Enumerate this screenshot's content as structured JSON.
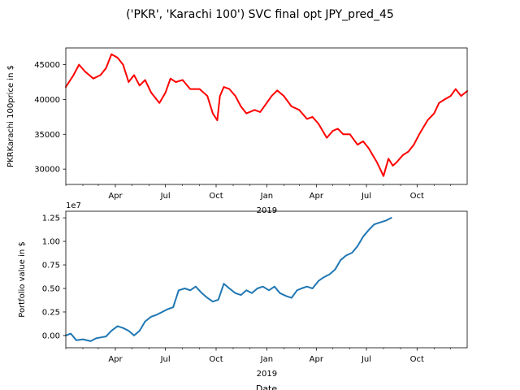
{
  "figure": {
    "title": "('PKR', 'Karachi 100') SVC final opt JPY_pred_45"
  },
  "chart_data": [
    {
      "type": "line",
      "ylabel": "PKRKarachi 100price in $",
      "xlabel": "",
      "x_tick_labels": [
        "Apr",
        "Jul",
        "Oct",
        "Jan",
        "Apr",
        "Jul",
        "Oct"
      ],
      "x_year_label": "2019",
      "y_ticks": [
        30000,
        35000,
        40000,
        45000
      ],
      "y_tick_labels": [
        "30000",
        "35000",
        "40000",
        "45000"
      ],
      "ylim": [
        27800,
        47400
      ],
      "xlim": [
        "2018-01-01",
        "2019-12-31"
      ],
      "grid": false,
      "series": [
        {
          "color": "#ff0000",
          "x": [
            "2018-01-01",
            "2018-01-15",
            "2018-01-25",
            "2018-02-05",
            "2018-02-20",
            "2018-03-05",
            "2018-03-15",
            "2018-03-25",
            "2018-04-05",
            "2018-04-15",
            "2018-04-25",
            "2018-05-05",
            "2018-05-15",
            "2018-05-25",
            "2018-06-05",
            "2018-06-20",
            "2018-07-01",
            "2018-07-10",
            "2018-07-20",
            "2018-08-01",
            "2018-08-15",
            "2018-09-01",
            "2018-09-15",
            "2018-09-25",
            "2018-10-03",
            "2018-10-08",
            "2018-10-15",
            "2018-10-25",
            "2018-11-05",
            "2018-11-15",
            "2018-11-25",
            "2018-12-10",
            "2018-12-20",
            "2019-01-01",
            "2019-01-10",
            "2019-01-20",
            "2019-02-01",
            "2019-02-15",
            "2019-03-01",
            "2019-03-15",
            "2019-03-25",
            "2019-04-05",
            "2019-04-20",
            "2019-05-01",
            "2019-05-10",
            "2019-05-20",
            "2019-06-01",
            "2019-06-15",
            "2019-06-25",
            "2019-07-05",
            "2019-07-20",
            "2019-08-01",
            "2019-08-10",
            "2019-08-18",
            "2019-08-25",
            "2019-09-05",
            "2019-09-15",
            "2019-09-25",
            "2019-10-05",
            "2019-10-20",
            "2019-11-01",
            "2019-11-10",
            "2019-11-20",
            "2019-12-01",
            "2019-12-10",
            "2019-12-20",
            "2019-12-31"
          ],
          "values": [
            41800,
            43500,
            45000,
            44000,
            43000,
            43500,
            44500,
            46500,
            46000,
            45000,
            42500,
            43500,
            42000,
            42800,
            41000,
            39500,
            41000,
            43000,
            42500,
            42800,
            41500,
            41500,
            40500,
            38000,
            37000,
            40500,
            41800,
            41500,
            40500,
            39000,
            38000,
            38500,
            38200,
            39500,
            40500,
            41300,
            40500,
            39000,
            38500,
            37200,
            37500,
            36500,
            34500,
            35500,
            35800,
            35000,
            35000,
            33500,
            34000,
            33000,
            31000,
            29000,
            31500,
            30500,
            31000,
            32000,
            32500,
            33500,
            35000,
            37000,
            38000,
            39500,
            40000,
            40500,
            41500,
            40500,
            41200
          ]
        }
      ]
    },
    {
      "type": "line",
      "ylabel": "Portfolio value in $",
      "xlabel": "Date",
      "offset_label": "1e7",
      "x_tick_labels": [
        "Apr",
        "Jul",
        "Oct",
        "Jan",
        "Apr",
        "Jul",
        "Oct"
      ],
      "x_year_label": "2019",
      "y_ticks": [
        0.0,
        0.25,
        0.5,
        0.75,
        1.0,
        1.25
      ],
      "y_tick_labels": [
        "0.00",
        "0.25",
        "0.50",
        "0.75",
        "1.00",
        "1.25"
      ],
      "ylim": [
        -0.13,
        1.32
      ],
      "xlim": [
        "2018-01-01",
        "2019-12-31"
      ],
      "grid": false,
      "series": [
        {
          "color": "#1f77b4",
          "x": [
            "2018-01-01",
            "2018-01-10",
            "2018-01-20",
            "2018-02-01",
            "2018-02-15",
            "2018-02-25",
            "2018-03-05",
            "2018-03-15",
            "2018-03-25",
            "2018-04-05",
            "2018-04-15",
            "2018-04-25",
            "2018-05-05",
            "2018-05-15",
            "2018-05-25",
            "2018-06-05",
            "2018-06-15",
            "2018-06-25",
            "2018-07-05",
            "2018-07-15",
            "2018-07-25",
            "2018-08-05",
            "2018-08-15",
            "2018-08-25",
            "2018-09-05",
            "2018-09-15",
            "2018-09-25",
            "2018-10-05",
            "2018-10-15",
            "2018-10-25",
            "2018-11-05",
            "2018-11-15",
            "2018-11-25",
            "2018-12-05",
            "2018-12-15",
            "2018-12-25",
            "2019-01-05",
            "2019-01-15",
            "2019-01-25",
            "2019-02-05",
            "2019-02-15",
            "2019-02-25",
            "2019-03-05",
            "2019-03-15",
            "2019-03-25",
            "2019-04-05",
            "2019-04-15",
            "2019-04-25",
            "2019-05-05",
            "2019-05-15",
            "2019-05-25",
            "2019-06-05",
            "2019-06-15",
            "2019-06-25",
            "2019-07-05",
            "2019-07-15",
            "2019-07-25",
            "2019-08-05",
            "2019-08-15"
          ],
          "values": [
            0.0,
            0.02,
            -0.05,
            -0.04,
            -0.06,
            -0.03,
            -0.02,
            -0.01,
            0.05,
            0.1,
            0.08,
            0.05,
            0.0,
            0.05,
            0.15,
            0.2,
            0.22,
            0.25,
            0.28,
            0.3,
            0.48,
            0.5,
            0.48,
            0.52,
            0.45,
            0.4,
            0.36,
            0.38,
            0.55,
            0.5,
            0.45,
            0.43,
            0.48,
            0.45,
            0.5,
            0.52,
            0.48,
            0.52,
            0.45,
            0.42,
            0.4,
            0.48,
            0.5,
            0.52,
            0.5,
            0.58,
            0.62,
            0.65,
            0.7,
            0.8,
            0.85,
            0.88,
            0.95,
            1.05,
            1.12,
            1.18,
            1.2,
            1.22,
            1.25
          ]
        }
      ]
    }
  ]
}
